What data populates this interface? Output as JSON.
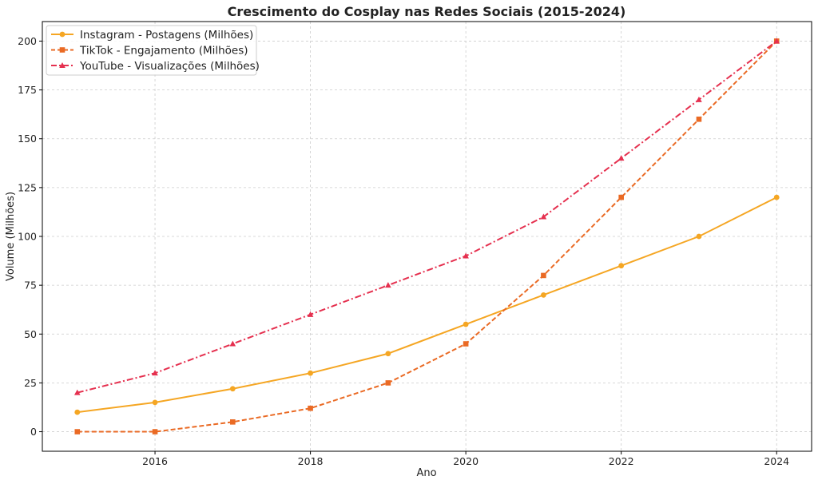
{
  "chart_data": {
    "type": "line",
    "title": "Crescimento do Cosplay nas Redes Sociais (2015-2024)",
    "xlabel": "Ano",
    "ylabel": "Volume (Milhões)",
    "x": [
      2015,
      2016,
      2017,
      2018,
      2019,
      2020,
      2021,
      2022,
      2023,
      2024
    ],
    "xlim": [
      2014.55,
      2024.45
    ],
    "ylim": [
      -10,
      210
    ],
    "xticks": [
      2016,
      2018,
      2020,
      2022,
      2024
    ],
    "yticks": [
      0,
      25,
      50,
      75,
      100,
      125,
      150,
      175,
      200
    ],
    "grid": true,
    "legend_position": "top-left",
    "series": [
      {
        "name": "Instagram - Postagens (Milhões)",
        "values": [
          10,
          15,
          22,
          30,
          40,
          55,
          70,
          85,
          100,
          120
        ],
        "color": "#f5a623",
        "linestyle": "solid",
        "marker": "circle"
      },
      {
        "name": "TikTok - Engajamento (Milhões)",
        "values": [
          0,
          0,
          5,
          12,
          25,
          45,
          80,
          120,
          160,
          200
        ],
        "color": "#ea6a24",
        "linestyle": "dashed",
        "marker": "square"
      },
      {
        "name": "YouTube - Visualizações (Milhões)",
        "values": [
          20,
          30,
          45,
          60,
          75,
          90,
          110,
          140,
          170,
          200
        ],
        "color": "#e5304f",
        "linestyle": "dashdot",
        "marker": "triangle"
      }
    ]
  }
}
